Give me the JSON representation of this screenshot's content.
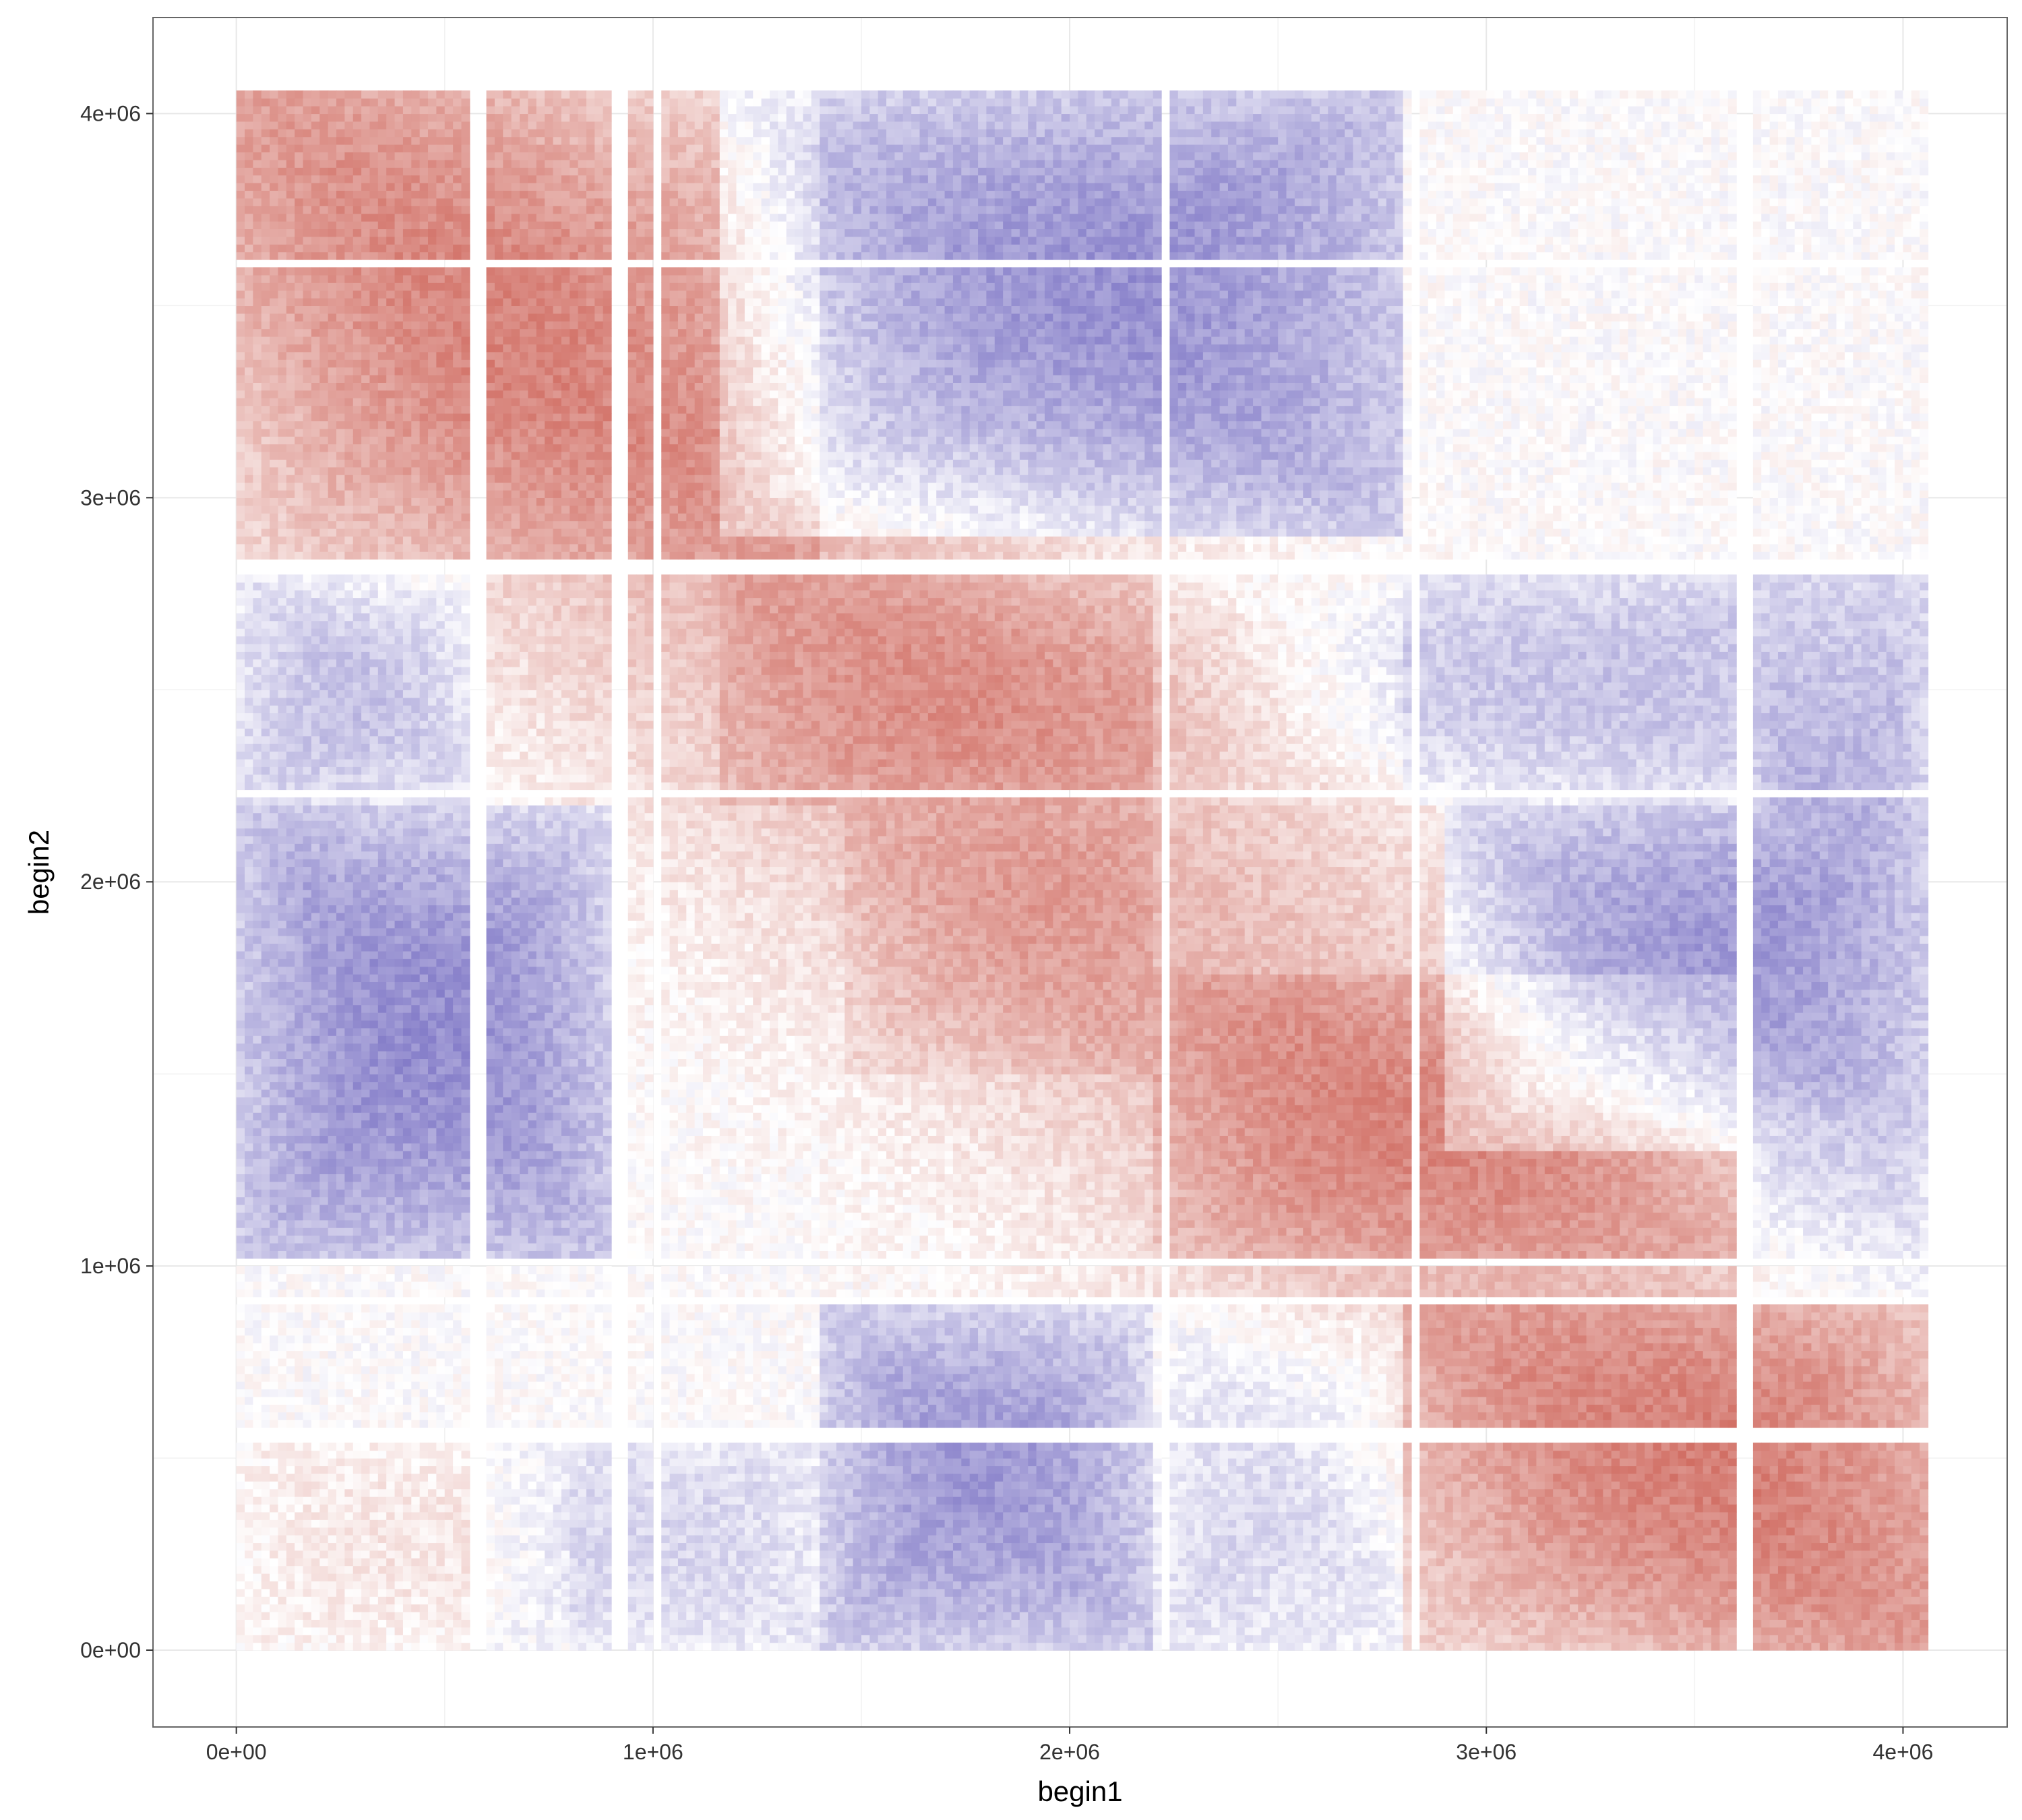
{
  "chart_data": {
    "type": "heatmap",
    "title": "",
    "xlabel": "begin1",
    "ylabel": "begin2",
    "xlim": [
      -200000,
      4250000
    ],
    "ylim": [
      -200000,
      4250000
    ],
    "x_ticks": [
      0,
      1000000,
      2000000,
      3000000,
      4000000
    ],
    "x_tick_labels": [
      "0e+00",
      "1e+06",
      "2e+06",
      "3e+06",
      "4e+06"
    ],
    "y_ticks": [
      0,
      1000000,
      2000000,
      3000000,
      4000000
    ],
    "y_tick_labels": [
      "0e+00",
      "1e+06",
      "2e+06",
      "3e+06",
      "4e+06"
    ],
    "grid": true,
    "legend": "none",
    "extent": [
      0,
      4050000
    ],
    "bin_size": 20000,
    "color_scale": {
      "low": "#3b2fa8",
      "mid": "#ffffff",
      "high": "#c0392b",
      "domain": [
        -1,
        0,
        1
      ]
    },
    "empty_bins_x": [
      [
        570000,
        590000
      ],
      [
        910000,
        930000
      ],
      [
        1000000,
        1020000
      ],
      [
        2220000,
        2240000
      ],
      [
        2820000,
        2840000
      ],
      [
        3610000,
        3630000
      ]
    ],
    "empty_bins_y": [
      [
        550000,
        565000
      ],
      [
        900000,
        920000
      ],
      [
        1000000,
        1020000
      ],
      [
        2220000,
        2240000
      ],
      [
        2810000,
        2830000
      ],
      [
        3600000,
        3615000
      ]
    ],
    "domains": [
      {
        "start": 0,
        "end": 580000
      },
      {
        "start": 580000,
        "end": 2220000
      },
      {
        "start": 2220000,
        "end": 3600000
      },
      {
        "start": 3600000,
        "end": 4050000
      }
    ],
    "enriched_regions": [
      {
        "x": [
          0,
          1400000
        ],
        "y": [
          2800000,
          4050000
        ],
        "value": 0.45
      },
      {
        "x": [
          1150000,
          2800000
        ],
        "y": [
          2200000,
          2800000
        ],
        "value": 0.4
      },
      {
        "x": [
          1450000,
          2200000
        ],
        "y": [
          1500000,
          2200000
        ],
        "value": 0.3
      },
      {
        "x": [
          2200000,
          3600000
        ],
        "y": [
          1000000,
          1750000
        ],
        "value": 0.45
      },
      {
        "x": [
          2800000,
          4050000
        ],
        "y": [
          0,
          900000
        ],
        "value": 0.5
      },
      {
        "x": [
          0,
          800000
        ],
        "y": [
          0,
          550000
        ],
        "value": 0.2
      }
    ],
    "depleted_regions": [
      {
        "x": [
          1150000,
          2800000
        ],
        "y": [
          2900000,
          4050000
        ],
        "value": -0.55
      },
      {
        "x": [
          1400000,
          2200000
        ],
        "y": [
          0,
          900000
        ],
        "value": -0.5
      },
      {
        "x": [
          0,
          900000
        ],
        "y": [
          1000000,
          2200000
        ],
        "value": -0.55
      },
      {
        "x": [
          2900000,
          4050000
        ],
        "y": [
          1300000,
          2200000
        ],
        "value": -0.55
      },
      {
        "x": [
          2200000,
          4050000
        ],
        "y": [
          2200000,
          2800000
        ],
        "value": -0.3
      },
      {
        "x": [
          0,
          600000
        ],
        "y": [
          2200000,
          2800000
        ],
        "value": -0.35
      },
      {
        "x": [
          3600000,
          4050000
        ],
        "y": [
          900000,
          2800000
        ],
        "value": -0.4
      },
      {
        "x": [
          2200000,
          2800000
        ],
        "y": [
          2900000,
          4050000
        ],
        "value": -0.35
      },
      {
        "x": [
          2200000,
          2800000
        ],
        "y": [
          0,
          900000
        ],
        "value": -0.25
      },
      {
        "x": [
          600000,
          1400000
        ],
        "y": [
          0,
          550000
        ],
        "value": -0.2
      }
    ]
  }
}
